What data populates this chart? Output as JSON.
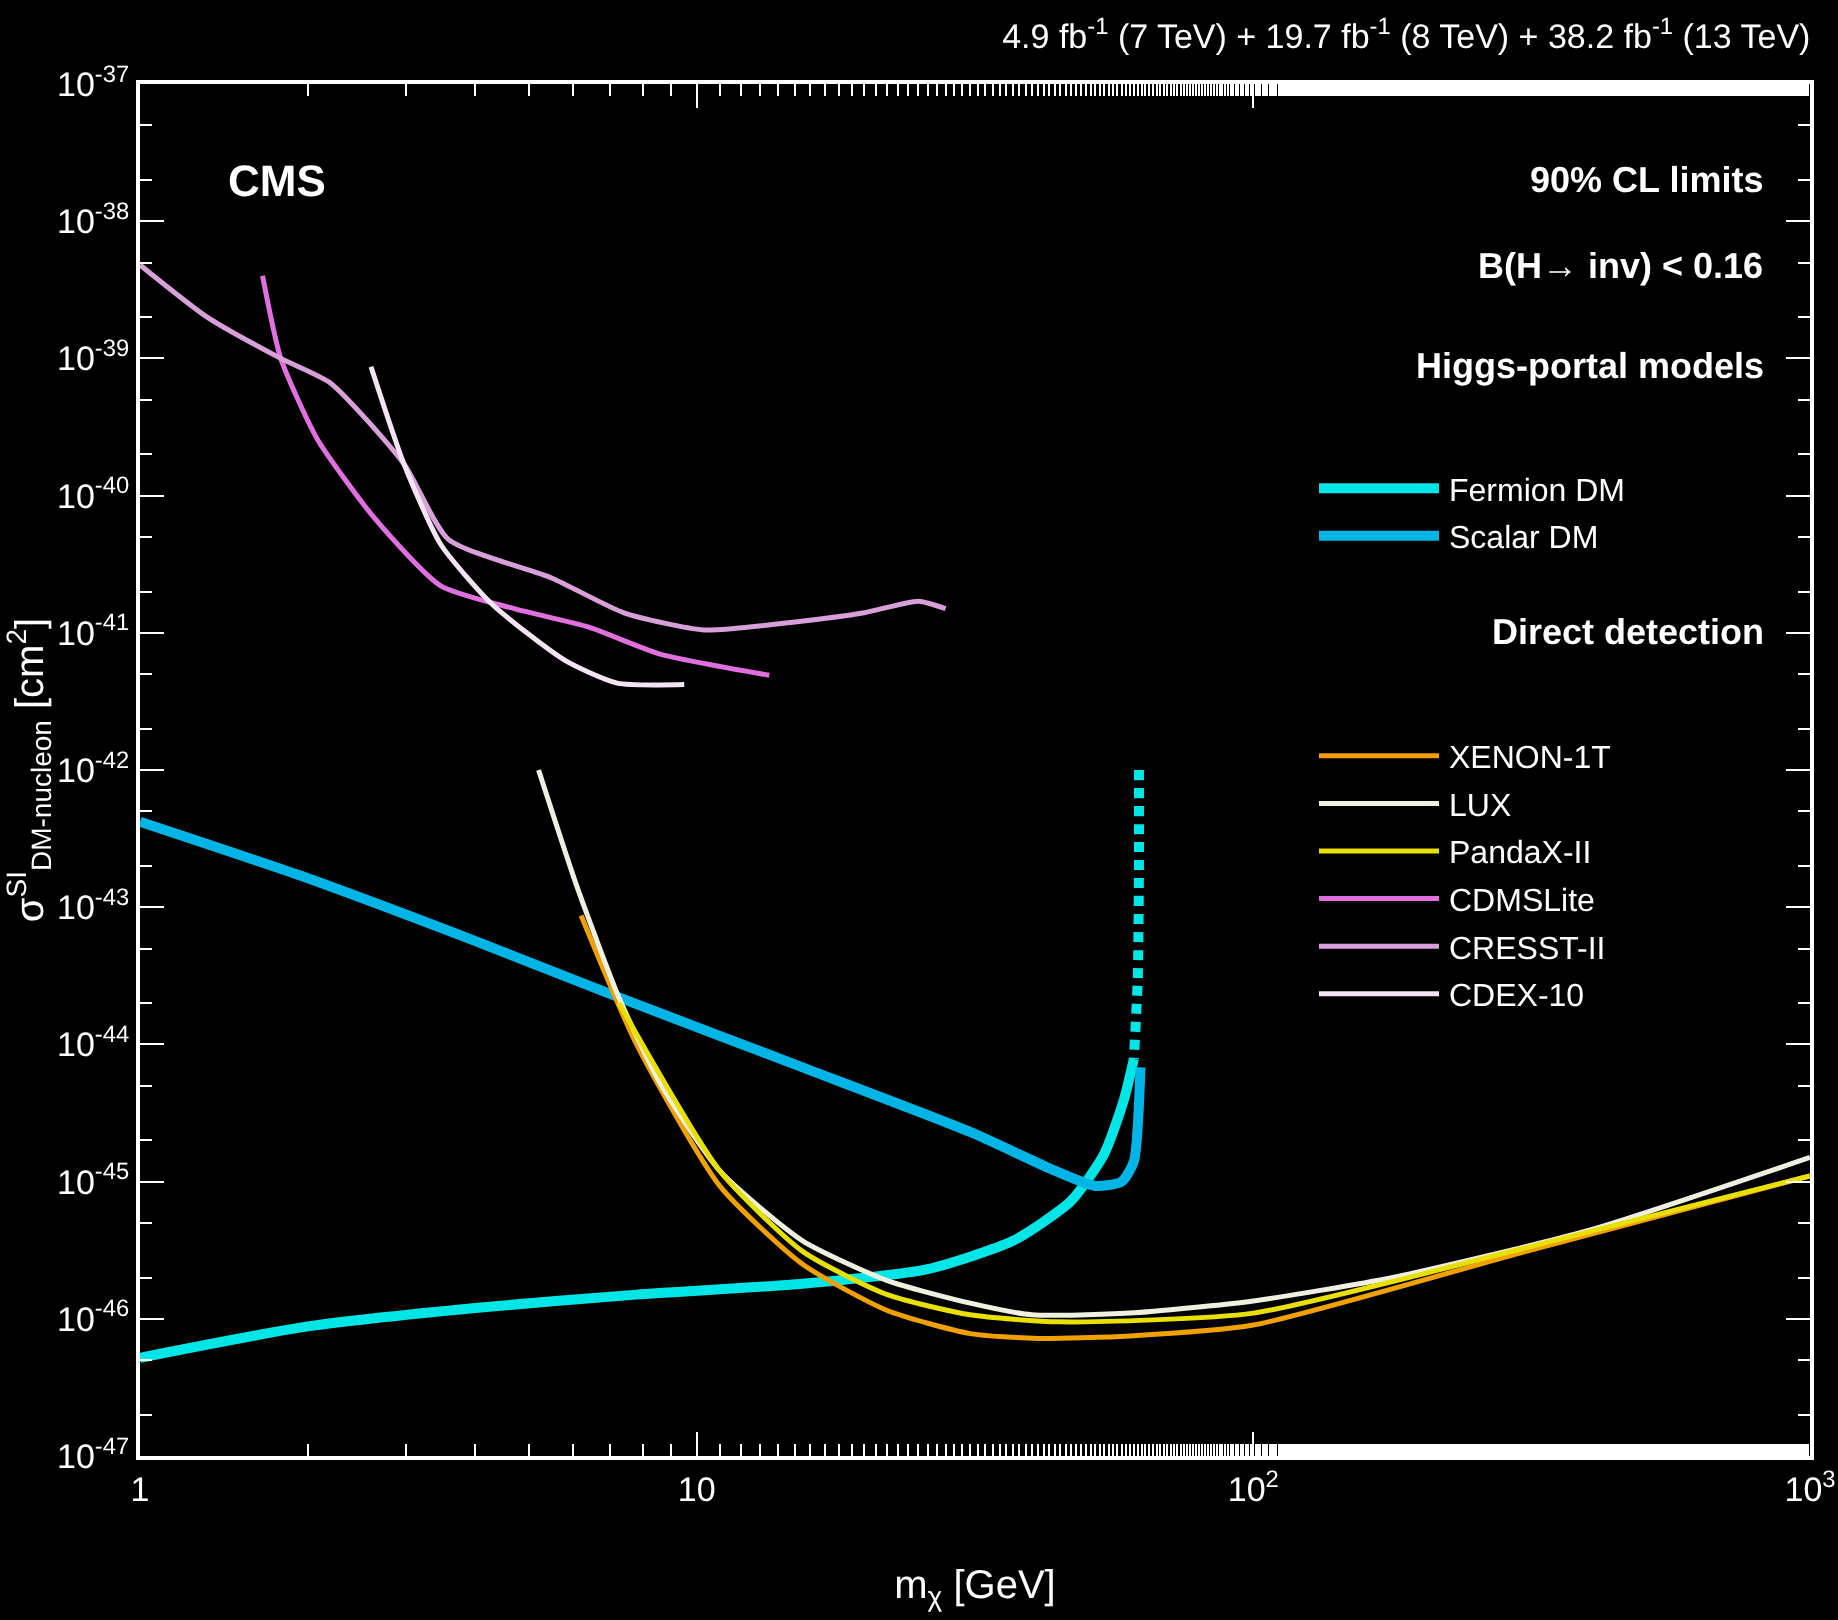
{
  "chart_data": {
    "type": "line",
    "title": "4.9 fb$^{-1}$ (7 TeV) + 19.7 fb$^{-1}$ (8 TeV) + 38.2 fb$^{-1}$ (13 TeV)",
    "xlabel": "m$_{χ}$ [GeV]",
    "ylabel": "σ$^{SI}$$_{DM-nucleon}$ [cm$^{2}$]",
    "annotations": [
      "CMS",
      "90% CL limits",
      "B(H→ inv) < 0.16",
      "Higgs-portal models",
      "Direct detection"
    ],
    "log": "xy",
    "grid": false,
    "legend": "top right",
    "marker": "none",
    "xlim": [
      1,
      1000
    ],
    "xticks": [
      1,
      10,
      {
        "value": 100,
        "label": "10$^{2}$"
      },
      {
        "value": 1000,
        "label": "10$^{3}$"
      }
    ],
    "ylim": [
      1e-47,
      1e-37
    ],
    "yticks": [
      {
        "value": 1e-47,
        "label": "10$^{-47}$"
      },
      {
        "value": 1e-46,
        "label": "10$^{-46}$"
      },
      {
        "value": 1e-45,
        "label": "10$^{-45}$"
      },
      {
        "value": 1e-44,
        "label": "10$^{-44}$"
      },
      {
        "value": 1e-43,
        "label": "10$^{-43}$"
      },
      {
        "value": 1e-42,
        "label": "10$^{-42}$"
      },
      {
        "value": 1e-41,
        "label": "10$^{-41}$"
      },
      {
        "value": 1e-40,
        "label": "10$^{-40}$"
      },
      {
        "value": 1e-39,
        "label": "10$^{-39}$"
      },
      {
        "value": 1e-38,
        "label": "10$^{-38}$"
      },
      {
        "value": 1e-37,
        "label": "10$^{-37}$"
      }
    ],
    "series": [
      {
        "name": "Fermion DM",
        "color": "#00e5e5",
        "line_style": "solid",
        "x": [
          1,
          2,
          4,
          7.8,
          15.5,
          26,
          37,
          47,
          54,
          58.6,
          61
        ],
        "values": [
          5.2e-47,
          8.8e-47,
          1.2e-46,
          1.5e-46,
          1.8e-46,
          2.3e-46,
          3.7e-46,
          7.2e-46,
          1.6e-45,
          4e-45,
          7.8e-45
        ]
      },
      {
        "name": "Scalar DM",
        "color": "#00b4e6",
        "line_style": "solid",
        "x": [
          1,
          1.94,
          3.9,
          7.25,
          15.5,
          31,
          44,
          52,
          58,
          61,
          62.7
        ],
        "values": [
          4.2e-43,
          1.7e-43,
          5.9e-44,
          2.2e-44,
          6.8e-45,
          2.3e-45,
          1.2e-45,
          9.3e-46,
          1e-45,
          1.4e-45,
          6.8e-45
        ]
      },
      {
        "color": "#00e5e5",
        "line_style": "dashed",
        "x": [
          62.3,
          62.3,
          62,
          61
        ],
        "values": [
          1e-42,
          2e-43,
          3e-44,
          7.8e-45
        ]
      },
      {
        "name": "XENON-1T",
        "color": "#f0a000",
        "line_style": "solid",
        "x": [
          6.2,
          7.8,
          11,
          15.5,
          22,
          31,
          41,
          60,
          100,
          300,
          1000
        ],
        "values": [
          8.7e-44,
          1e-44,
          9.3e-46,
          2.5e-46,
          1.15e-46,
          7.8e-47,
          7.2e-47,
          7.5e-47,
          9e-47,
          3e-46,
          1.1e-45
        ]
      },
      {
        "name": "LUX",
        "color": "#f0f0e0",
        "line_style": "solid",
        "x": [
          5.2,
          6.1,
          7.25,
          8.6,
          11,
          15.5,
          22,
          31,
          40,
          60,
          100,
          178,
          400,
          1000
        ],
        "values": [
          1e-42,
          1.4e-43,
          2.2e-44,
          5.2e-45,
          1.2e-45,
          3.7e-46,
          1.9e-46,
          1.3e-46,
          1.07e-46,
          1.1e-46,
          1.35e-46,
          2e-46,
          4.4e-46,
          1.5e-45
        ]
      },
      {
        "name": "PandaX-II",
        "color": "#e8e000",
        "line_style": "solid",
        "x": [
          7.25,
          11,
          15.5,
          22,
          31,
          45,
          100,
          300,
          1000
        ],
        "values": [
          2e-44,
          1.2e-45,
          3.1e-46,
          1.5e-46,
          1.07e-46,
          9.5e-47,
          1.1e-46,
          3.2e-46,
          1.1e-45
        ]
      },
      {
        "name": "CDMSLite",
        "color": "#e070e0",
        "line_style": "solid",
        "x": [
          1.66,
          1.79,
          2.08,
          2.65,
          3.47,
          4.7,
          6.4,
          8.6,
          13.5
        ],
        "values": [
          4e-39,
          1e-39,
          2.6e-40,
          6.7e-41,
          2.2e-41,
          1.5e-41,
          1.1e-41,
          7e-42,
          4.9e-42
        ]
      },
      {
        "name": "CRESST-II",
        "color": "#d8a0d8",
        "line_style": "solid",
        "x": [
          1,
          1.32,
          1.79,
          2.2,
          2.98,
          3.58,
          5.5,
          7.4,
          10.3,
          15,
          20,
          25,
          28
        ],
        "values": [
          4.8e-39,
          2e-39,
          1e-39,
          6.6e-40,
          1.7e-40,
          4.8e-41,
          2.5e-41,
          1.4e-41,
          1.05e-41,
          1.2e-41,
          1.4e-41,
          1.7e-41,
          1.5e-41
        ]
      },
      {
        "name": "CDEX-10",
        "color": "#f4e4f4",
        "line_style": "solid",
        "x": [
          2.6,
          2.98,
          3.47,
          4.3,
          5.8,
          7.2,
          9.5
        ],
        "values": [
          8.7e-40,
          1.7e-40,
          4.4e-41,
          1.6e-41,
          6.3e-42,
          4.3e-42,
          4.2e-42
        ]
      }
    ]
  }
}
